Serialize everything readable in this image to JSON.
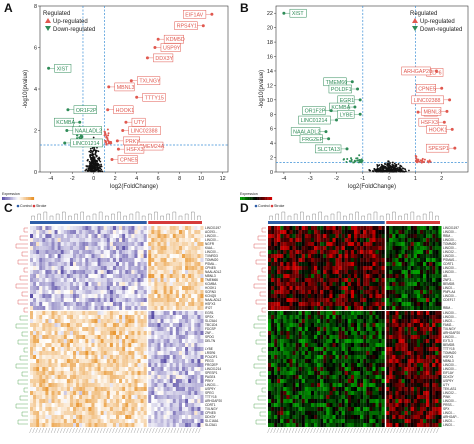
{
  "panels": {
    "a": "A",
    "b": "B",
    "c": "C",
    "d": "D"
  },
  "chart_data": [
    {
      "type": "scatter",
      "panel": "A",
      "xlabel": "log2(FoldChange)",
      "ylabel": "-log10(pvalue)",
      "xlim": [
        -5,
        12.5
      ],
      "ylim": [
        0,
        8
      ],
      "xticks": [
        -4,
        -2,
        0,
        2,
        4,
        6,
        8,
        10,
        12
      ],
      "yticks": [
        0,
        2,
        4,
        6,
        8
      ],
      "thresholds": {
        "x": [
          -1,
          1
        ],
        "y": 1.3
      },
      "legend": {
        "title": "Regulated",
        "items": [
          "Up-regulated",
          "Down-regulated"
        ],
        "position": "top-left"
      },
      "colors": {
        "up": "#e0584f",
        "down": "#2e8b57",
        "ns": "#111111",
        "threshold": "#3a8fd6"
      },
      "labeled_points": [
        {
          "label": "EIF1AV",
          "x": 11.0,
          "y": 7.6,
          "group": "up"
        },
        {
          "label": "RPS4Y1",
          "x": 10.2,
          "y": 7.05,
          "group": "up"
        },
        {
          "label": "KDM5D",
          "x": 6.0,
          "y": 6.4,
          "group": "up"
        },
        {
          "label": "USP9Y",
          "x": 5.7,
          "y": 6.0,
          "group": "up"
        },
        {
          "label": "DDX3Y",
          "x": 5.0,
          "y": 5.5,
          "group": "up"
        },
        {
          "label": "MBNL3",
          "x": 1.4,
          "y": 4.1,
          "group": "up"
        },
        {
          "label": "TXLNGY",
          "x": 3.5,
          "y": 4.4,
          "group": "up"
        },
        {
          "label": "TTTY15",
          "x": 4.0,
          "y": 3.6,
          "group": "up"
        },
        {
          "label": "HOOK1",
          "x": 1.3,
          "y": 3.0,
          "group": "up"
        },
        {
          "label": "UTY",
          "x": 3.0,
          "y": 2.4,
          "group": "up"
        },
        {
          "label": "LINC02388",
          "x": 2.7,
          "y": 2.0,
          "group": "up"
        },
        {
          "label": "PRKY",
          "x": 2.2,
          "y": 1.5,
          "group": "up"
        },
        {
          "label": "TMEM24A",
          "x": 3.5,
          "y": 1.25,
          "group": "up"
        },
        {
          "label": "HSFX3",
          "x": 2.3,
          "y": 1.1,
          "group": "up"
        },
        {
          "label": "CPNE5",
          "x": 1.7,
          "y": 0.6,
          "group": "up"
        },
        {
          "label": "XIST",
          "x": -4.2,
          "y": 5.0,
          "group": "down"
        },
        {
          "label": "OR1F2P",
          "x": -2.4,
          "y": 3.0,
          "group": "down"
        },
        {
          "label": "KCMBA",
          "x": -1.3,
          "y": 2.4,
          "group": "down"
        },
        {
          "label": "NAALADL2",
          "x": -2.5,
          "y": 2.0,
          "group": "down"
        },
        {
          "label": "LINC01214",
          "x": -2.7,
          "y": 1.4,
          "group": "down"
        }
      ]
    },
    {
      "type": "scatter",
      "panel": "B",
      "xlabel": "log2(FoldChange)",
      "ylabel": "-log10(pvalue)",
      "xlim": [
        -4.3,
        3.0
      ],
      "ylim": [
        0,
        23
      ],
      "xticks": [
        -4,
        -3,
        -2,
        -1,
        0,
        1,
        2
      ],
      "yticks": [
        0,
        2,
        4,
        6,
        8,
        10,
        12,
        14,
        16,
        18,
        20,
        22
      ],
      "thresholds": {
        "x": [
          -1,
          1
        ],
        "y": 1.3
      },
      "legend": {
        "title": "Regulated",
        "items": [
          "Up-regulated",
          "Down-regulated"
        ],
        "position": "top-right"
      },
      "colors": {
        "up": "#e0584f",
        "down": "#2e8b57",
        "ns": "#111111",
        "threshold": "#3a8fd6"
      },
      "labeled_points": [
        {
          "label": "XIST",
          "x": -4.0,
          "y": 22.0,
          "group": "down"
        },
        {
          "label": "TMEM66",
          "x": -1.4,
          "y": 12.5,
          "group": "down"
        },
        {
          "label": "POLDF1",
          "x": -1.2,
          "y": 11.5,
          "group": "down"
        },
        {
          "label": "EGR1",
          "x": -1.1,
          "y": 10.0,
          "group": "down"
        },
        {
          "label": "KCMBA",
          "x": -1.3,
          "y": 9.0,
          "group": "down"
        },
        {
          "label": "OR1F2P",
          "x": -2.2,
          "y": 8.5,
          "group": "down"
        },
        {
          "label": "LYBE",
          "x": -1.1,
          "y": 8.0,
          "group": "down"
        },
        {
          "label": "LINC01214",
          "x": -2.0,
          "y": 7.2,
          "group": "down"
        },
        {
          "label": "NAALADL2",
          "x": -2.4,
          "y": 5.6,
          "group": "down"
        },
        {
          "label": "FRG2EP",
          "x": -2.3,
          "y": 4.6,
          "group": "down"
        },
        {
          "label": "SLCTA13",
          "x": -1.6,
          "y": 3.2,
          "group": "down"
        },
        {
          "label": "ELP6",
          "x": 1.2,
          "y": 13.8,
          "group": "up"
        },
        {
          "label": "ARHGAP20",
          "x": 1.8,
          "y": 14.0,
          "group": "up"
        },
        {
          "label": "CPNE5",
          "x": 2.0,
          "y": 11.6,
          "group": "up"
        },
        {
          "label": "LINC02388",
          "x": 2.3,
          "y": 10.0,
          "group": "up"
        },
        {
          "label": "ADM",
          "x": 1.1,
          "y": 8.3,
          "group": "up"
        },
        {
          "label": "MBNL3",
          "x": 2.2,
          "y": 8.4,
          "group": "up"
        },
        {
          "label": "HSFX3",
          "x": 2.1,
          "y": 6.9,
          "group": "up"
        },
        {
          "label": "HOOK1",
          "x": 2.4,
          "y": 5.9,
          "group": "up"
        },
        {
          "label": "SPESP1",
          "x": 2.5,
          "y": 3.3,
          "group": "up"
        }
      ]
    },
    {
      "type": "heatmap",
      "panel": "C",
      "legend_title": "Expression",
      "groups": [
        "Control",
        "Stroke"
      ],
      "row_labels": [
        "LINC01197",
        "AC093...",
        "LINC00...",
        "LINC00...",
        "NGFR",
        "KIAA...",
        "LINC00...",
        "TXNRD3",
        "TOMM20",
        "PSMA...",
        "CPNE5",
        "NAALADL2",
        "MBNL3",
        "TMEM66",
        "KCMBA",
        "HOOK1",
        "SCRN3",
        "KCNQ5",
        "NAALADL2",
        "HSFX3",
        "IFI27",
        "EGR1",
        "SPSX",
        "SLC5A4",
        "TBC1D4",
        "FDCSP",
        "ZNF...",
        "SPDG",
        "DELTN",
        "",
        "LYBE",
        "LRSR6",
        "POLDF1",
        "PEG3",
        "FRG2EP",
        "LINC01214",
        "SPESP1",
        "PAGE4",
        "PRKY",
        "LINC01...",
        "USP9Y",
        "SPEG",
        "TTTY15",
        "ARHGAP20",
        "CDRT1",
        "TXLNGY",
        "CPNE5",
        "DDX3Y",
        "SLC16A1",
        "SLC5A1"
      ],
      "color_scale": [
        "#5b4fa8",
        "#ffffff",
        "#e8932a"
      ]
    },
    {
      "type": "heatmap",
      "panel": "D",
      "legend_title": "Expression",
      "groups": [
        "Control",
        "Stroke"
      ],
      "row_labels": [
        "LINC01197",
        "LINC00...",
        "RBM...",
        "LINC00...",
        "TOMM20",
        "LINC00...",
        "LINC02...",
        "LINC00...",
        "PSMAS...",
        "CDRT1",
        "LINC00...",
        "LINC00...",
        "AB...",
        "ZNF3...",
        "BEMDB",
        "LINC0...",
        "PNPLA4",
        "LINC00...",
        "CDEF17",
        "",
        "RBM...",
        "LINC00...",
        "LINC00...",
        "LINC0...",
        "FAM2...",
        "TXLNGY",
        "ARHGAP20",
        "LINC00...",
        "EXTL3",
        "BEMDB",
        "TTTY15",
        "TOMM20",
        "HSFX3",
        "MBNL3",
        "LINC00...",
        "LINC00...",
        "EIF1AY",
        "DDX3Y",
        "USP9Y",
        "UTY",
        "TEK-AS1",
        "LINC02...",
        "PINK",
        "LINC00...",
        "PRSS...",
        "SPX",
        "LINC0...",
        "ARHGAP...",
        "LINC0...",
        "LINC0..."
      ],
      "color_scale": [
        "#00a000",
        "#000000",
        "#d00000"
      ]
    }
  ]
}
